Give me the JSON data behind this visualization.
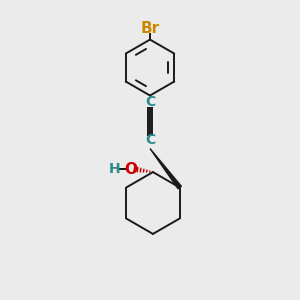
{
  "background_color": "#ebebeb",
  "bond_color": "#1a1a1a",
  "br_color": "#cc8800",
  "alkyne_c_color": "#2e8b8b",
  "oh_o_color": "#cc0000",
  "oh_h_color": "#2e8b8b",
  "br_label": "Br",
  "c_label": "C",
  "o_label": "O",
  "h_label": "H",
  "font_size": 9,
  "lw": 1.4
}
